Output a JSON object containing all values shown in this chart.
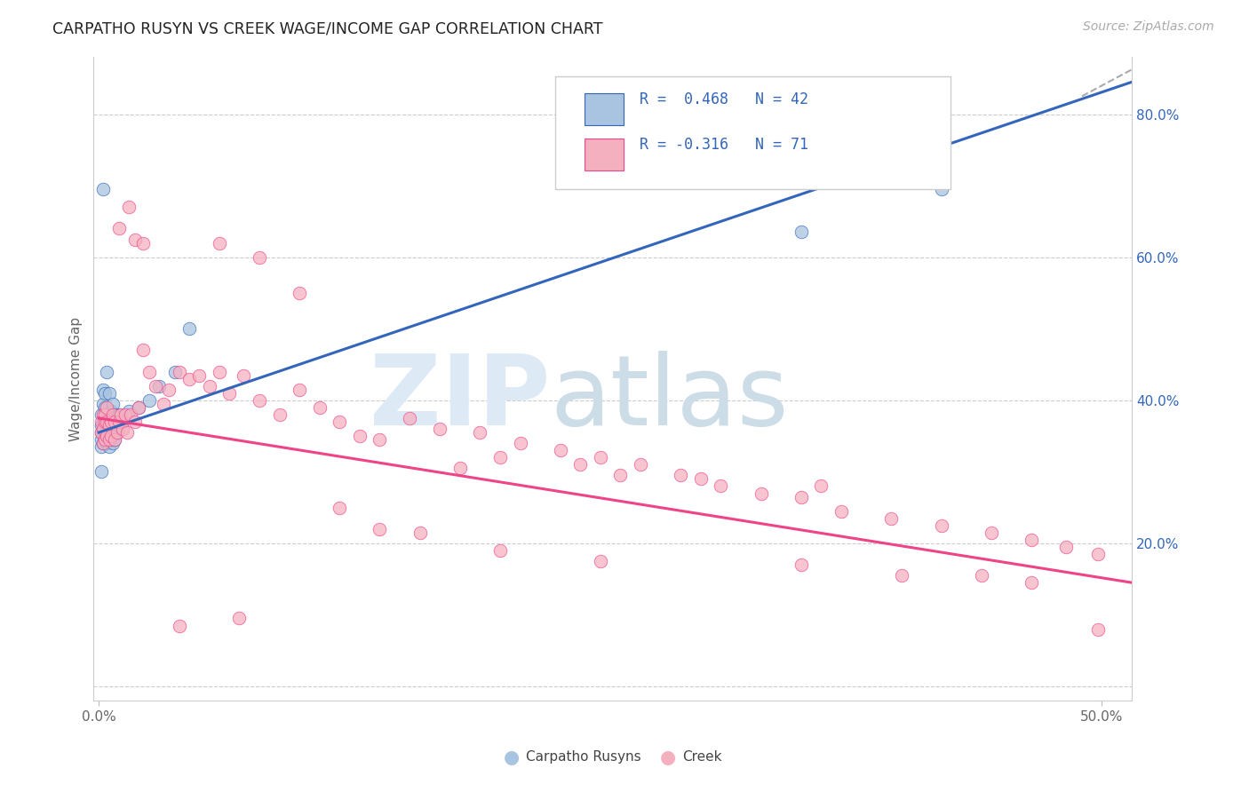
{
  "title": "CARPATHO RUSYN VS CREEK WAGE/INCOME GAP CORRELATION CHART",
  "source": "Source: ZipAtlas.com",
  "ylabel": "Wage/Income Gap",
  "x_min": -0.003,
  "x_max": 0.515,
  "y_min": -0.02,
  "y_max": 0.88,
  "y_ticks": [
    0.0,
    0.2,
    0.4,
    0.6,
    0.8
  ],
  "y_tick_labels": [
    "",
    "20.0%",
    "40.0%",
    "60.0%",
    "80.0%"
  ],
  "blue_color": "#a8c4e0",
  "pink_color": "#f5b0c0",
  "blue_line_color": "#3366bb",
  "pink_line_color": "#ee4488",
  "legend_text_color": "#3366bb",
  "blue_trend_x": [
    0.0,
    0.515
  ],
  "blue_trend_y": [
    0.355,
    0.845
  ],
  "pink_trend_x": [
    0.0,
    0.515
  ],
  "pink_trend_y": [
    0.375,
    0.145
  ],
  "carpatho_x": [
    0.001,
    0.001,
    0.001,
    0.001,
    0.001,
    0.001,
    0.002,
    0.002,
    0.002,
    0.002,
    0.002,
    0.003,
    0.003,
    0.003,
    0.003,
    0.004,
    0.004,
    0.004,
    0.005,
    0.005,
    0.005,
    0.005,
    0.006,
    0.006,
    0.006,
    0.007,
    0.007,
    0.007,
    0.008,
    0.008,
    0.009,
    0.01,
    0.012,
    0.015,
    0.02,
    0.025,
    0.03,
    0.038,
    0.045,
    0.002,
    0.35,
    0.42
  ],
  "carpatho_y": [
    0.335,
    0.345,
    0.355,
    0.365,
    0.38,
    0.3,
    0.34,
    0.355,
    0.37,
    0.395,
    0.415,
    0.345,
    0.365,
    0.39,
    0.41,
    0.34,
    0.37,
    0.44,
    0.335,
    0.355,
    0.37,
    0.41,
    0.345,
    0.36,
    0.385,
    0.34,
    0.365,
    0.395,
    0.345,
    0.38,
    0.355,
    0.38,
    0.37,
    0.385,
    0.39,
    0.4,
    0.42,
    0.44,
    0.5,
    0.695,
    0.635,
    0.695
  ],
  "creek_x": [
    0.001,
    0.001,
    0.002,
    0.002,
    0.002,
    0.003,
    0.003,
    0.003,
    0.004,
    0.004,
    0.004,
    0.005,
    0.005,
    0.006,
    0.006,
    0.007,
    0.008,
    0.008,
    0.009,
    0.01,
    0.011,
    0.012,
    0.013,
    0.014,
    0.016,
    0.018,
    0.02,
    0.022,
    0.025,
    0.028,
    0.032,
    0.035,
    0.04,
    0.045,
    0.05,
    0.055,
    0.06,
    0.065,
    0.072,
    0.08,
    0.09,
    0.1,
    0.11,
    0.12,
    0.13,
    0.14,
    0.155,
    0.17,
    0.19,
    0.21,
    0.23,
    0.25,
    0.27,
    0.29,
    0.31,
    0.33,
    0.35,
    0.37,
    0.395,
    0.42,
    0.445,
    0.465,
    0.482,
    0.498,
    0.16,
    0.18,
    0.2,
    0.24,
    0.26,
    0.3,
    0.36
  ],
  "creek_y": [
    0.355,
    0.37,
    0.34,
    0.36,
    0.38,
    0.345,
    0.37,
    0.38,
    0.35,
    0.37,
    0.39,
    0.345,
    0.365,
    0.35,
    0.37,
    0.38,
    0.345,
    0.37,
    0.355,
    0.37,
    0.38,
    0.36,
    0.38,
    0.355,
    0.38,
    0.37,
    0.39,
    0.47,
    0.44,
    0.42,
    0.395,
    0.415,
    0.44,
    0.43,
    0.435,
    0.42,
    0.44,
    0.41,
    0.435,
    0.4,
    0.38,
    0.415,
    0.39,
    0.37,
    0.35,
    0.345,
    0.375,
    0.36,
    0.355,
    0.34,
    0.33,
    0.32,
    0.31,
    0.295,
    0.28,
    0.27,
    0.265,
    0.245,
    0.235,
    0.225,
    0.215,
    0.205,
    0.195,
    0.185,
    0.215,
    0.305,
    0.32,
    0.31,
    0.295,
    0.29,
    0.28
  ],
  "creek_outlier_x": [
    0.01,
    0.015,
    0.018,
    0.022,
    0.06,
    0.08,
    0.1,
    0.12,
    0.14,
    0.2,
    0.25,
    0.35,
    0.4,
    0.44,
    0.465,
    0.498,
    0.04,
    0.07
  ],
  "creek_outlier_y": [
    0.64,
    0.67,
    0.625,
    0.62,
    0.62,
    0.6,
    0.55,
    0.25,
    0.22,
    0.19,
    0.175,
    0.17,
    0.155,
    0.155,
    0.145,
    0.08,
    0.085,
    0.095
  ]
}
